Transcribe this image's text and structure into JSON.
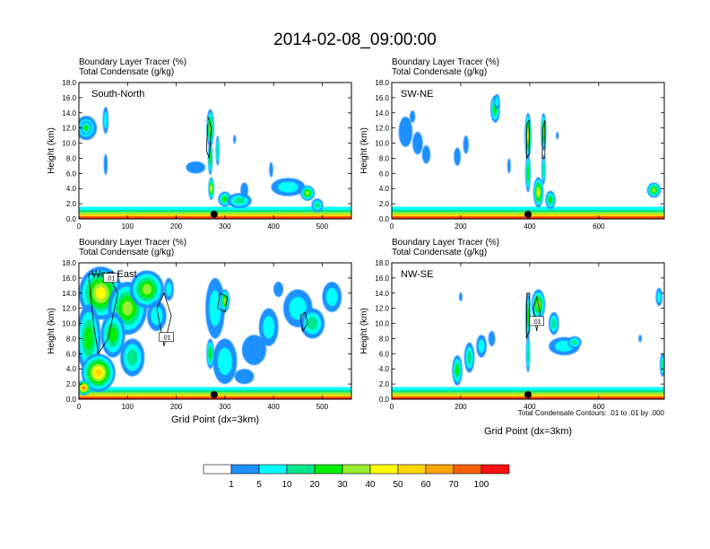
{
  "title": "2014-02-08_09:00:00",
  "colors": {
    "levels": [
      "#ffffff",
      "#1e90ff",
      "#00ffff",
      "#00e68c",
      "#00ee00",
      "#9aee32",
      "#ffff00",
      "#ffd700",
      "#ffa500",
      "#ff6000",
      "#ff1010"
    ],
    "outline": "#000000",
    "marker": "#000000"
  },
  "colorbar": {
    "labels": [
      "1",
      "5",
      "10",
      "20",
      "30",
      "40",
      "50",
      "60",
      "70",
      "100"
    ]
  },
  "footnote": "Total Condensate Contours: .01 to .01 by .000",
  "chart_data": [
    {
      "type": "heatmap",
      "section": "South-North",
      "title_line1": "Boundary Layer Tracer   (%)",
      "title_line2": "Total Condensate   (g/kg)",
      "ylabel": "Height (km)",
      "xlabel": "",
      "xlim": [
        0,
        560
      ],
      "ylim": [
        0,
        18
      ],
      "xticks": [
        "0",
        "100",
        "200",
        "300",
        "400",
        "500"
      ],
      "xtick_values": [
        0,
        100,
        200,
        300,
        400,
        500
      ],
      "yticks": [
        "0.0",
        "2.0",
        "4.0",
        "6.0",
        "8.0",
        "10.0",
        "12.0",
        "14.0",
        "16.0",
        "18.0"
      ],
      "marker_x": 278,
      "contour_labels": [],
      "blobs": [
        [
          15,
          12.0,
          22,
          1.6,
          3
        ],
        [
          15,
          12.0,
          12,
          0.9,
          4
        ],
        [
          55,
          13.0,
          6,
          1.8,
          2
        ],
        [
          55,
          7.2,
          4,
          1.4,
          1
        ],
        [
          270,
          12.0,
          8,
          2.5,
          5
        ],
        [
          270,
          8.0,
          5,
          2.2,
          4
        ],
        [
          272,
          4.0,
          6,
          1.5,
          6
        ],
        [
          285,
          9.0,
          4,
          2.0,
          3
        ],
        [
          240,
          6.8,
          20,
          0.8,
          1
        ],
        [
          300,
          2.6,
          14,
          1.0,
          4
        ],
        [
          330,
          2.4,
          25,
          1.0,
          3
        ],
        [
          340,
          3.8,
          8,
          1.0,
          1
        ],
        [
          430,
          4.2,
          35,
          1.2,
          2
        ],
        [
          470,
          3.4,
          15,
          1.0,
          5
        ],
        [
          490,
          1.8,
          12,
          0.9,
          3
        ],
        [
          395,
          6.5,
          4,
          1.0,
          1
        ],
        [
          320,
          10.5,
          3,
          0.6,
          1
        ]
      ],
      "contours": [
        [
          [
            265,
            12.5
          ],
          [
            262,
            9.0
          ],
          [
            268,
            8.0
          ],
          [
            272,
            12.0
          ],
          [
            265,
            13.5
          ]
        ]
      ]
    },
    {
      "type": "heatmap",
      "section": "SW-NE",
      "title_line1": "Boundary Layer Tracer   (%)",
      "title_line2": "Total Condensate   (g/kg)",
      "ylabel": "Height (km)",
      "xlabel": "",
      "xlim": [
        0,
        790
      ],
      "ylim": [
        0,
        18
      ],
      "xticks": [
        "0",
        "200",
        "400",
        "600"
      ],
      "xtick_values": [
        0,
        200,
        400,
        600
      ],
      "yticks": [
        "0.0",
        "2.0",
        "4.0",
        "6.0",
        "8.0",
        "10.0",
        "12.0",
        "14.0",
        "16.0",
        "18.0"
      ],
      "marker_x": 395,
      "contour_labels": [],
      "blobs": [
        [
          40,
          11.5,
          20,
          2.0,
          1
        ],
        [
          75,
          10.0,
          15,
          1.5,
          1
        ],
        [
          100,
          8.5,
          12,
          1.2,
          1
        ],
        [
          60,
          13.5,
          8,
          0.8,
          1
        ],
        [
          190,
          8.2,
          10,
          1.2,
          1
        ],
        [
          215,
          9.8,
          8,
          1.2,
          1
        ],
        [
          300,
          14.5,
          14,
          1.8,
          4
        ],
        [
          305,
          15.5,
          8,
          1.0,
          2
        ],
        [
          395,
          11.0,
          10,
          3.0,
          6
        ],
        [
          395,
          6.0,
          8,
          2.5,
          4
        ],
        [
          440,
          11.5,
          8,
          2.5,
          5
        ],
        [
          440,
          6.5,
          6,
          2.0,
          3
        ],
        [
          425,
          3.5,
          15,
          2.0,
          6
        ],
        [
          460,
          2.5,
          15,
          1.2,
          4
        ],
        [
          340,
          7.0,
          5,
          1.0,
          1
        ],
        [
          760,
          3.8,
          20,
          1.0,
          5
        ],
        [
          480,
          11.0,
          4,
          0.5,
          1
        ]
      ],
      "contours": [
        [
          [
            392,
            12.5
          ],
          [
            390,
            8.0
          ],
          [
            398,
            8.5
          ],
          [
            398,
            13.0
          ],
          [
            392,
            12.5
          ]
        ],
        [
          [
            438,
            12.0
          ],
          [
            436,
            8.0
          ],
          [
            444,
            8.0
          ],
          [
            444,
            13.0
          ],
          [
            438,
            12.0
          ]
        ]
      ]
    },
    {
      "type": "heatmap",
      "section": "West-East",
      "title_line1": "Boundary Layer Tracer   (%)",
      "title_line2": "Total Condensate   (g/kg)",
      "ylabel": "Height (km)",
      "xlabel": "Grid Point (dx=3km)",
      "xlim": [
        0,
        560
      ],
      "ylim": [
        0,
        18
      ],
      "xticks": [
        "0",
        "100",
        "200",
        "300",
        "400",
        "500"
      ],
      "xtick_values": [
        0,
        100,
        200,
        300,
        400,
        500
      ],
      "yticks": [
        "0.0",
        "2.0",
        "4.0",
        "6.0",
        "8.0",
        "10.0",
        "12.0",
        "14.0",
        "16.0",
        "18.0"
      ],
      "marker_x": 278,
      "contour_labels": [
        ".01",
        ".01"
      ],
      "contour_label_pos": [
        [
          65,
          15.9
        ],
        [
          180,
          8.1
        ]
      ],
      "blobs": [
        [
          45,
          14.0,
          45,
          3.5,
          6
        ],
        [
          100,
          12.0,
          40,
          3.5,
          5
        ],
        [
          140,
          14.5,
          35,
          2.5,
          5
        ],
        [
          20,
          8.0,
          25,
          4.5,
          4
        ],
        [
          70,
          8.5,
          25,
          3.0,
          4
        ],
        [
          40,
          3.5,
          35,
          2.5,
          7
        ],
        [
          110,
          5.5,
          25,
          2.5,
          3
        ],
        [
          160,
          11.0,
          20,
          2.0,
          2
        ],
        [
          185,
          14.5,
          10,
          1.5,
          2
        ],
        [
          10,
          1.5,
          15,
          1.0,
          9
        ],
        [
          280,
          12.0,
          20,
          4.0,
          2
        ],
        [
          300,
          13.0,
          10,
          1.5,
          5
        ],
        [
          300,
          5.0,
          25,
          3.0,
          2
        ],
        [
          270,
          6.0,
          8,
          2.0,
          4
        ],
        [
          360,
          6.5,
          25,
          2.0,
          1
        ],
        [
          390,
          9.5,
          20,
          2.5,
          2
        ],
        [
          450,
          12.0,
          30,
          2.5,
          2
        ],
        [
          480,
          10.0,
          25,
          2.0,
          3
        ],
        [
          520,
          13.5,
          20,
          2.0,
          2
        ],
        [
          410,
          14.5,
          10,
          1.0,
          1
        ],
        [
          340,
          3.0,
          20,
          1.0,
          1
        ]
      ],
      "contours": [
        [
          [
            20,
            16.5
          ],
          [
            30,
            10.0
          ],
          [
            40,
            6.0
          ],
          [
            60,
            8.0
          ],
          [
            80,
            14.0
          ],
          [
            60,
            16.5
          ],
          [
            20,
            16.5
          ]
        ],
        [
          [
            160,
            12.0
          ],
          [
            175,
            7.0
          ],
          [
            190,
            11.0
          ],
          [
            175,
            14.0
          ],
          [
            160,
            12.0
          ]
        ],
        [
          [
            290,
            14.0
          ],
          [
            285,
            12.0
          ],
          [
            300,
            11.5
          ],
          [
            305,
            13.5
          ],
          [
            290,
            14.0
          ]
        ],
        [
          [
            455,
            11.0
          ],
          [
            460,
            9.0
          ],
          [
            470,
            10.0
          ],
          [
            465,
            11.5
          ],
          [
            455,
            11.0
          ]
        ]
      ]
    },
    {
      "type": "heatmap",
      "section": "NW-SE",
      "title_line1": "Boundary Layer Tracer   (%)",
      "title_line2": "Total Condensate   (g/kg)",
      "ylabel": "Height (km)",
      "xlabel": "Grid Point (dx=3km)",
      "xlim": [
        0,
        790
      ],
      "ylim": [
        0,
        18
      ],
      "xticks": [
        "0",
        "200",
        "400",
        "600"
      ],
      "xtick_values": [
        0,
        200,
        400,
        600
      ],
      "yticks": [
        "0.0",
        "2.0",
        "4.0",
        "6.0",
        "8.0",
        "10.0",
        "12.0",
        "14.0",
        "16.0",
        "18.0"
      ],
      "marker_x": 395,
      "contour_labels": [
        ".01"
      ],
      "contour_label_pos": [
        [
          420,
          10.2
        ]
      ],
      "blobs": [
        [
          190,
          3.8,
          15,
          2.0,
          4
        ],
        [
          225,
          5.5,
          15,
          2.0,
          3
        ],
        [
          260,
          7.0,
          15,
          1.5,
          2
        ],
        [
          290,
          8.0,
          10,
          1.0,
          1
        ],
        [
          395,
          11.0,
          8,
          3.0,
          4
        ],
        [
          395,
          6.0,
          6,
          2.5,
          3
        ],
        [
          425,
          12.5,
          20,
          2.0,
          5
        ],
        [
          470,
          10.0,
          15,
          1.5,
          3
        ],
        [
          500,
          7.0,
          45,
          1.2,
          2
        ],
        [
          530,
          7.5,
          20,
          0.8,
          3
        ],
        [
          200,
          13.5,
          5,
          0.6,
          1
        ],
        [
          775,
          13.5,
          10,
          1.2,
          2
        ],
        [
          785,
          4.5,
          8,
          1.5,
          3
        ],
        [
          720,
          8.0,
          5,
          0.5,
          1
        ]
      ],
      "contours": [
        [
          [
            392,
            14.0
          ],
          [
            390,
            8.0
          ],
          [
            398,
            9.0
          ],
          [
            400,
            14.0
          ],
          [
            392,
            14.0
          ]
        ],
        [
          [
            410,
            12.0
          ],
          [
            420,
            9.0
          ],
          [
            430,
            11.5
          ],
          [
            420,
            13.5
          ],
          [
            410,
            12.0
          ]
        ]
      ]
    }
  ]
}
